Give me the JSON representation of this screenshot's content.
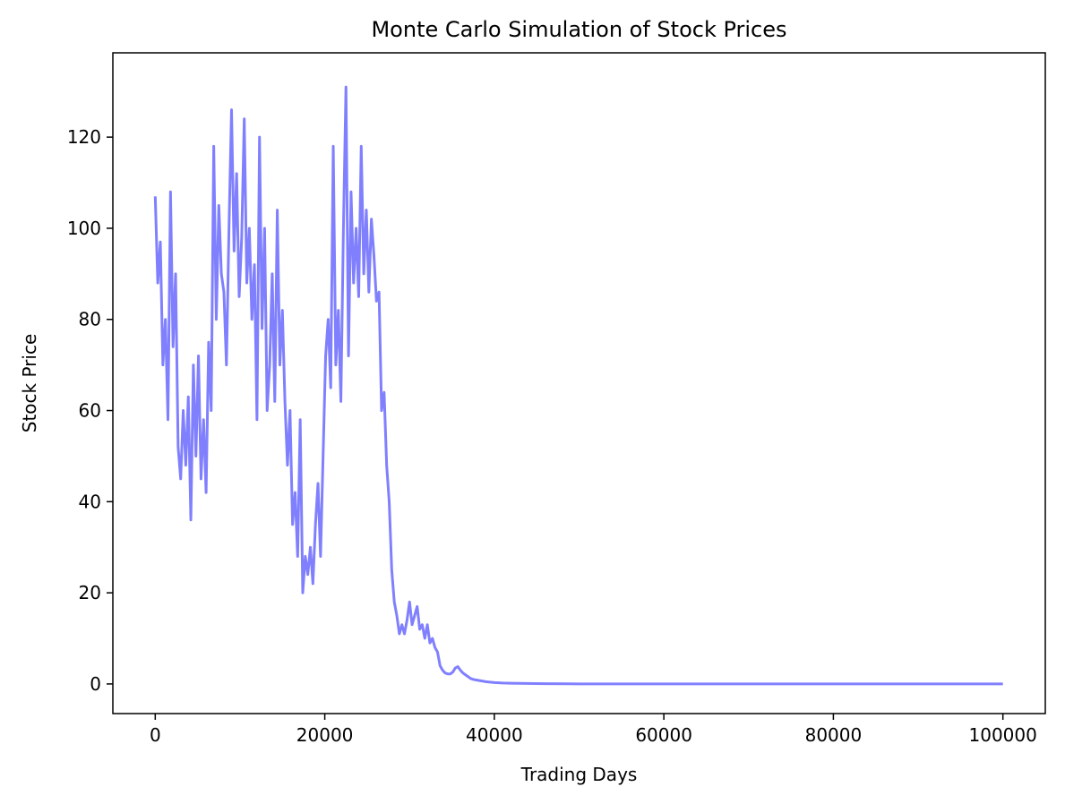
{
  "chart_data": {
    "type": "line",
    "title": "Monte Carlo Simulation of Stock Prices",
    "xlabel": "Trading Days",
    "ylabel": "Stock Price",
    "xlim": [
      -5000,
      105000
    ],
    "ylim": [
      -6.5,
      138.5
    ],
    "xticks": [
      0,
      20000,
      40000,
      60000,
      80000,
      100000
    ],
    "yticks": [
      0,
      20,
      40,
      60,
      80,
      100,
      120
    ],
    "grid": false,
    "legend": "none",
    "colors": {
      "line": "#8080ff",
      "axes": "#000000",
      "background": "#ffffff"
    },
    "series": [
      {
        "x": [
          0,
          300,
          600,
          900,
          1200,
          1500,
          1800,
          2100,
          2400,
          2700,
          3000,
          3300,
          3600,
          3900,
          4200,
          4500,
          4800,
          5100,
          5400,
          5700,
          6000,
          6300,
          6600,
          6900,
          7200,
          7500,
          7800,
          8100,
          8400,
          8700,
          9000,
          9300,
          9600,
          9900,
          10200,
          10500,
          10800,
          11100,
          11400,
          11700,
          12000,
          12300,
          12600,
          12900,
          13200,
          13500,
          13800,
          14100,
          14400,
          14700,
          15000,
          15300,
          15600,
          15900,
          16200,
          16500,
          16800,
          17100,
          17400,
          17700,
          18000,
          18300,
          18600,
          18900,
          19200,
          19500,
          19800,
          20100,
          20400,
          20700,
          21000,
          21300,
          21600,
          21900,
          22200,
          22500,
          22800,
          23100,
          23400,
          23700,
          24000,
          24300,
          24600,
          24900,
          25200,
          25500,
          25800,
          26100,
          26400,
          26700,
          27000,
          27300,
          27600,
          27900,
          28200,
          28500,
          28800,
          29100,
          29400,
          29700,
          30000,
          30300,
          30600,
          30900,
          31200,
          31500,
          31800,
          32100,
          32400,
          32700,
          33000,
          33300,
          33600,
          33900,
          34200,
          34500,
          34800,
          35100,
          35400,
          35700,
          36000,
          36300,
          36600,
          36900,
          37200,
          37500,
          37800,
          38100,
          38400,
          38700,
          39000,
          39500,
          40000,
          41000,
          42000,
          44000,
          46000,
          50000,
          55000,
          60000,
          70000,
          80000,
          90000,
          100000
        ],
        "y": [
          107,
          88,
          97,
          70,
          80,
          58,
          108,
          74,
          90,
          52,
          45,
          60,
          48,
          63,
          36,
          70,
          50,
          72,
          45,
          58,
          42,
          75,
          60,
          118,
          80,
          105,
          90,
          86,
          70,
          100,
          126,
          95,
          112,
          85,
          98,
          124,
          88,
          100,
          80,
          92,
          58,
          120,
          78,
          100,
          60,
          70,
          90,
          62,
          104,
          70,
          82,
          62,
          48,
          60,
          35,
          42,
          28,
          58,
          20,
          28,
          24,
          30,
          22,
          35,
          44,
          28,
          50,
          72,
          80,
          65,
          118,
          70,
          82,
          62,
          100,
          131,
          72,
          108,
          88,
          100,
          85,
          118,
          90,
          104,
          86,
          102,
          94,
          84,
          86,
          60,
          64,
          48,
          40,
          25,
          18,
          15,
          11,
          13,
          11,
          14,
          18,
          13,
          15,
          17,
          12,
          13,
          10,
          13,
          9,
          10,
          8,
          7,
          4,
          3,
          2.4,
          2.2,
          2.2,
          2.6,
          3.5,
          3.8,
          3.0,
          2.4,
          2.0,
          1.6,
          1.2,
          1.0,
          0.9,
          0.8,
          0.7,
          0.6,
          0.5,
          0.4,
          0.3,
          0.2,
          0.15,
          0.1,
          0.05,
          0.02,
          0.01,
          0,
          0,
          0,
          0,
          0
        ]
      }
    ]
  }
}
